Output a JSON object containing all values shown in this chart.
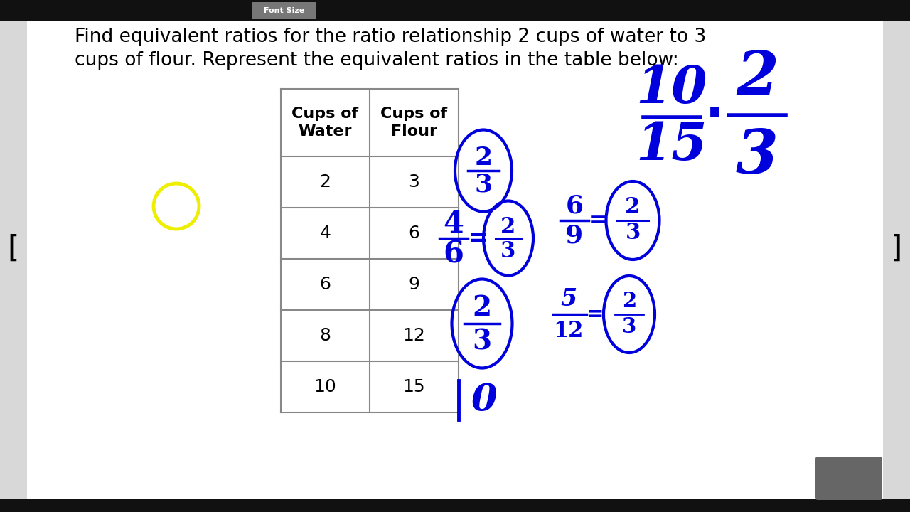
{
  "bg_top_bar": "#111111",
  "bg_bottom_bar": "#111111",
  "bg_side": "#d8d8d8",
  "bg_content": "#ffffff",
  "title_line1": "Find equivalent ratios for the ratio relationship 2 cups of water to 3",
  "title_line2": "cups of flour. Represent the equivalent ratios in the table below:",
  "header1": "Cups of\nWater",
  "header2": "Cups of\nFlour",
  "rows": [
    [
      "2",
      "3"
    ],
    [
      "4",
      "6"
    ],
    [
      "6",
      "9"
    ],
    [
      "8",
      "12"
    ],
    [
      "10",
      "15"
    ]
  ],
  "toolbar_text": "Font Size",
  "blue": "#0000dd",
  "yellow": "#eeee00",
  "gray_btn": "#666666"
}
